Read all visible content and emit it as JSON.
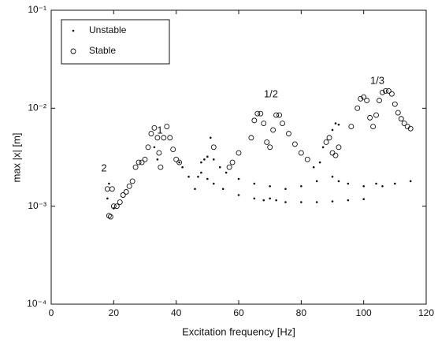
{
  "chart_data": {
    "type": "scatter",
    "xlabel": "Excitation frequency   [Hz]",
    "ylabel": "max |x|   [m]",
    "xlim": [
      0,
      120
    ],
    "xticks": [
      0,
      20,
      40,
      60,
      80,
      100,
      120
    ],
    "ylim": [
      0.0001,
      0.1
    ],
    "log_y": true,
    "yticks": [
      {
        "value": 0.0001,
        "label": "10⁻⁴"
      },
      {
        "value": 0.001,
        "label": "10⁻³"
      },
      {
        "value": 0.01,
        "label": "10⁻²"
      },
      {
        "value": 0.1,
        "label": "10⁻¹"
      }
    ],
    "legend": "upper left",
    "annotations": [
      "2",
      "1",
      "1/2",
      "1/3"
    ],
    "series": [
      {
        "name": "Unstable",
        "marker": "dot",
        "color": "#111111",
        "x": [
          18,
          18.5,
          20,
          33,
          34,
          41,
          42,
          44,
          46,
          47,
          48,
          50,
          52,
          55,
          60,
          65,
          68,
          70,
          72,
          75,
          80,
          85,
          90,
          95,
          100,
          48,
          49,
          50,
          51,
          52,
          54,
          56,
          60,
          65,
          70,
          75,
          80,
          85,
          90,
          92,
          95,
          100,
          104,
          106,
          110,
          115,
          84,
          86,
          87,
          90,
          91,
          92
        ],
        "y": [
          0.0012,
          0.0017,
          0.00095,
          0.004,
          0.003,
          0.0028,
          0.0025,
          0.002,
          0.0015,
          0.002,
          0.0022,
          0.0019,
          0.0017,
          0.0015,
          0.0013,
          0.0012,
          0.00115,
          0.0012,
          0.00115,
          0.0011,
          0.0011,
          0.0011,
          0.00112,
          0.00115,
          0.00118,
          0.0028,
          0.003,
          0.0032,
          0.005,
          0.003,
          0.0025,
          0.0022,
          0.0019,
          0.0017,
          0.0016,
          0.0015,
          0.0016,
          0.0018,
          0.002,
          0.0018,
          0.0017,
          0.0016,
          0.0017,
          0.0016,
          0.0017,
          0.0018,
          0.0025,
          0.0028,
          0.004,
          0.006,
          0.007,
          0.0068
        ]
      },
      {
        "name": "Stable",
        "marker": "circle",
        "color": "#111111",
        "x": [
          18,
          18.5,
          19,
          19.5,
          20,
          21,
          22,
          23,
          24,
          25,
          26,
          27,
          28,
          29,
          30,
          31,
          32,
          33,
          34,
          34.5,
          35,
          36,
          37,
          38,
          39,
          40,
          41,
          52,
          57,
          58,
          60,
          64,
          65,
          66,
          67,
          68,
          69,
          70,
          71,
          72,
          73,
          74,
          76,
          78,
          80,
          82,
          88,
          89,
          90,
          91,
          92,
          96,
          98,
          99,
          100,
          101,
          102,
          103,
          104,
          105,
          106,
          107,
          108,
          109,
          110,
          111,
          112,
          113,
          114,
          115
        ],
        "y": [
          0.0015,
          0.0008,
          0.00078,
          0.0015,
          0.001,
          0.001,
          0.0011,
          0.0013,
          0.0014,
          0.0016,
          0.0018,
          0.0025,
          0.0028,
          0.0028,
          0.003,
          0.004,
          0.0055,
          0.0063,
          0.005,
          0.0035,
          0.0025,
          0.005,
          0.0065,
          0.005,
          0.0038,
          0.003,
          0.0028,
          0.004,
          0.0025,
          0.0028,
          0.0035,
          0.005,
          0.0075,
          0.0088,
          0.0088,
          0.007,
          0.0045,
          0.004,
          0.006,
          0.0085,
          0.0085,
          0.007,
          0.0055,
          0.0043,
          0.0035,
          0.003,
          0.0045,
          0.005,
          0.0035,
          0.0033,
          0.004,
          0.0065,
          0.01,
          0.0125,
          0.013,
          0.012,
          0.008,
          0.0065,
          0.0085,
          0.012,
          0.0145,
          0.015,
          0.015,
          0.014,
          0.011,
          0.009,
          0.0078,
          0.007,
          0.0065,
          0.0062
        ]
      }
    ]
  }
}
